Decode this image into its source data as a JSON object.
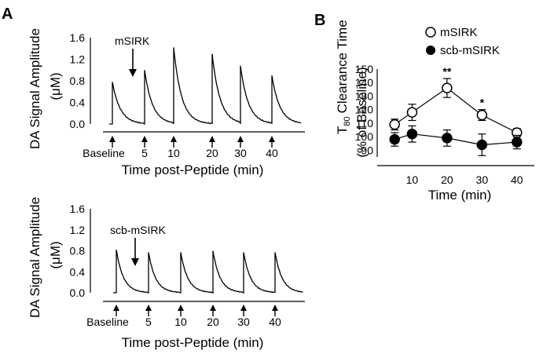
{
  "panel_letters": {
    "a": "A",
    "b": "B"
  },
  "chart_data": [
    {
      "type": "line",
      "panel": "A",
      "ylabel_line1": "DA Signal Amplitude",
      "ylabel_line2": "(μM)",
      "xlabel": "Time post-Peptide (min)",
      "ylim": [
        0,
        1.6
      ],
      "yticks": [
        "1.6",
        "1.2",
        "0.8",
        "0.4",
        "0.0"
      ],
      "annotation": "mSIRK",
      "stim_labels": [
        "Baseline",
        "5",
        "10",
        "20",
        "30",
        "40"
      ],
      "peak_amplitudes": [
        0.78,
        1.0,
        1.42,
        1.3,
        1.08,
        0.9
      ]
    },
    {
      "type": "line",
      "panel": "A",
      "ylabel_line1": "DA Signal Amplitude",
      "ylabel_line2": "(μM)",
      "xlabel": "Time post-Peptide (min)",
      "ylim": [
        0,
        1.6
      ],
      "yticks": [
        "1.6",
        "1.2",
        "0.8",
        "0.4",
        "0.0"
      ],
      "annotation": "scb-mSIRK",
      "stim_labels": [
        "Baseline",
        "5",
        "10",
        "20",
        "30",
        "40"
      ],
      "peak_amplitudes": [
        0.82,
        0.77,
        0.77,
        0.8,
        0.77,
        0.77
      ]
    },
    {
      "type": "line",
      "panel": "B",
      "ylabel_line1": "T   Clearance Time",
      "ylabel_sub": "80",
      "ylabel_line2": "(% of Baseline)",
      "xlabel": "Time (min)",
      "ylim": [
        85,
        150
      ],
      "yticks": [
        "150",
        "140",
        "130",
        "120",
        "110",
        "100",
        "90"
      ],
      "xticks": [
        "10",
        "20",
        "30",
        "40"
      ],
      "x": [
        5,
        10,
        20,
        30,
        40
      ],
      "series": [
        {
          "name": "mSIRK",
          "marker": "open-circle",
          "values": [
            109,
            118,
            136,
            116,
            103
          ],
          "errors": [
            4,
            6,
            7,
            4,
            3
          ]
        },
        {
          "name": "scb-mSIRK",
          "marker": "filled-circle",
          "values": [
            98,
            102,
            99,
            94,
            96
          ],
          "errors": [
            5,
            6,
            6,
            8,
            5
          ]
        }
      ],
      "significance": [
        {
          "x": 20,
          "label": "**"
        },
        {
          "x": 30,
          "label": "*"
        }
      ]
    }
  ]
}
